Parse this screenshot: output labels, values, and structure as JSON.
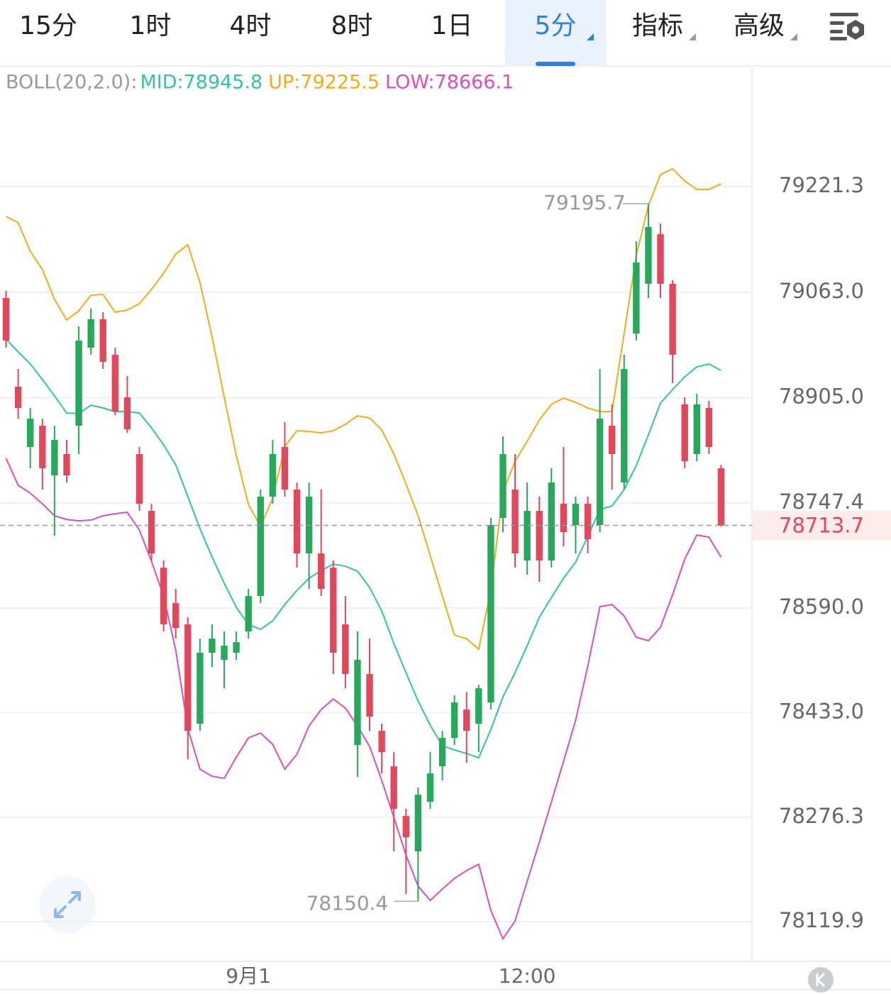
{
  "tabs": [
    "15分",
    "1时",
    "4时",
    "8时",
    "1日",
    "5分",
    "指标",
    "高级"
  ],
  "active_tab": 5,
  "chart_data": {
    "type": "candlestick",
    "indicator": "BOLL(20,2.0):",
    "categories": [
      null,
      null,
      null,
      null,
      null,
      null,
      null,
      null,
      null,
      null,
      null,
      null,
      null,
      null,
      null,
      null,
      null,
      null,
      null,
      null,
      "9月1",
      null,
      null,
      null,
      null,
      null,
      null,
      null,
      null,
      null,
      null,
      null,
      null,
      null,
      null,
      null,
      null,
      null,
      null,
      null,
      null,
      null,
      null,
      "12:00",
      null,
      null,
      null,
      null,
      null,
      null,
      null,
      null,
      null,
      null,
      null,
      null,
      null,
      null,
      null,
      null
    ],
    "open": [
      79054.4,
      78921.5,
      78831.1,
      78863.0,
      78788.6,
      78820.5,
      78863.0,
      78979.9,
      79022.5,
      78969.3,
      78905.5,
      78820.5,
      78735.4,
      78650.3,
      78597.2,
      78565.3,
      78416.4,
      78522.8,
      78512.1,
      78522.8,
      78554.7,
      78607.8,
      78756.7,
      78831.1,
      78767.3,
      78671.6,
      78671.6,
      78650.3,
      78565.3,
      78384.5,
      78490.9,
      78405.8,
      78352.6,
      78278.2,
      78225.1,
      78299.5,
      78352.6,
      78395.2,
      78437.7,
      78416.4,
      78448.3,
      78724.8,
      78767.3,
      78661.0,
      78735.4,
      78661.0,
      78746.0,
      78714.1,
      78746.0,
      78714.1,
      78863.0,
      78777.9,
      79001.2,
      79075.6,
      79150.0,
      79075.6,
      78894.9,
      78820.5,
      78889.6,
      78799.2
    ],
    "high": [
      79065.0,
      78948.0,
      78889.6,
      78873.6,
      78863.0,
      78841.7,
      79011.8,
      79038.4,
      79033.1,
      78979.9,
      78937.4,
      78831.1,
      78746.0,
      78661.0,
      78618.4,
      78575.9,
      78544.0,
      78565.3,
      78554.7,
      78554.7,
      78618.4,
      78767.3,
      78841.7,
      78868.3,
      78777.9,
      78777.9,
      78767.3,
      78661.0,
      78607.8,
      78554.7,
      78544.0,
      78416.4,
      78373.9,
      78288.9,
      78320.7,
      78373.9,
      78405.8,
      78459.0,
      78464.3,
      78474.9,
      78724.8,
      78847.0,
      78820.5,
      78777.9,
      78756.7,
      78799.2,
      78831.1,
      78756.7,
      78756.7,
      78948.0,
      78894.9,
      78969.3,
      79139.4,
      79195.7,
      79166.0,
      79080.9,
      78905.5,
      78910.8,
      78900.2,
      78804.5
    ],
    "low": [
      78979.9,
      78873.6,
      78799.2,
      78767.3,
      78698.2,
      78777.9,
      78820.5,
      78969.3,
      78948.0,
      78878.9,
      78852.3,
      78735.4,
      78661.0,
      78554.7,
      78544.0,
      78363.3,
      78405.8,
      78501.5,
      78469.6,
      78512.1,
      78544.0,
      78597.2,
      78746.0,
      78756.7,
      78650.3,
      78618.4,
      78607.8,
      78490.9,
      78469.6,
      78336.7,
      78405.8,
      78342.0,
      78225.1,
      78161.3,
      78150.4,
      78288.9,
      78331.4,
      78384.5,
      78358.0,
      78373.9,
      78437.7,
      78703.5,
      78650.3,
      78639.7,
      78629.1,
      78650.3,
      78682.2,
      78671.6,
      78671.6,
      78703.5,
      78767.3,
      78767.3,
      78990.6,
      79054.4,
      79054.4,
      78926.8,
      78799.2,
      78809.8,
      78820.5,
      78712.0
    ],
    "close": [
      78990.6,
      78889.6,
      78873.6,
      78799.2,
      78841.7,
      78788.6,
      78990.6,
      79022.5,
      78958.7,
      78884.2,
      78857.7,
      78746.0,
      78671.6,
      78565.3,
      78560.0,
      78405.8,
      78522.8,
      78544.0,
      78533.4,
      78538.7,
      78607.8,
      78756.7,
      78820.5,
      78767.3,
      78671.6,
      78756.7,
      78618.4,
      78522.8,
      78490.9,
      78512.1,
      78427.1,
      78373.9,
      78288.9,
      78246.3,
      78310.1,
      78342.0,
      78395.2,
      78448.3,
      78405.8,
      78469.6,
      78714.1,
      78820.5,
      78671.6,
      78735.4,
      78661.0,
      78777.9,
      78703.5,
      78746.0,
      78692.9,
      78873.6,
      78820.5,
      78948.0,
      79107.5,
      79160.7,
      79075.6,
      78969.3,
      78809.8,
      78894.9,
      78831.1,
      78713.7
    ],
    "up_color": "#26a95a",
    "down_color": "#e3475b",
    "series": [
      {
        "name": "MID:78945.8",
        "color": "#33c3a6",
        "values": [
          78992.7,
          78973.6,
          78955.5,
          78932.1,
          78907.6,
          78882.1,
          78881.1,
          78893.8,
          78889.6,
          78884.2,
          78884.2,
          78882.1,
          78859.8,
          78834.3,
          78804.5,
          78756.7,
          78708.8,
          78666.3,
          78627.0,
          78590.8,
          78565.3,
          78557.8,
          78570.6,
          78595.1,
          78616.3,
          78634.4,
          78646.1,
          78655.7,
          78652.5,
          78645.0,
          78620.6,
          78585.5,
          78536.6,
          78493.0,
          78450.5,
          78414.3,
          78383.5,
          78377.1,
          78371.8,
          78365.4,
          78407.9,
          78456.8,
          78493.0,
          78533.4,
          78575.9,
          78605.7,
          78634.4,
          78658.8,
          78697.1,
          78737.5,
          78742.8,
          78767.3,
          78803.4,
          78849.2,
          78897.0,
          78917.2,
          78936.3,
          78951.2,
          78955.5,
          78945.8
        ]
      },
      {
        "name": "UP:79225.5",
        "color": "#f0ad18",
        "values": [
          79176.6,
          79167.1,
          79124.5,
          79096.9,
          79052.2,
          79021.4,
          79035.2,
          79058.6,
          79059.7,
          79033.1,
          79036.3,
          79045.9,
          79067.1,
          79091.6,
          79120.3,
          79134.1,
          79077.7,
          78995.9,
          78905.5,
          78818.3,
          78745.0,
          78712.0,
          78754.5,
          78832.1,
          78855.5,
          78854.5,
          78852.3,
          78855.5,
          78865.1,
          78877.9,
          78874.7,
          78856.6,
          78820.5,
          78775.8,
          78727.9,
          78668.4,
          78607.8,
          78549.3,
          78544.0,
          78528.1,
          78616.3,
          78764.1,
          78809.8,
          78839.6,
          78871.5,
          78894.9,
          78904.4,
          78898.1,
          78889.6,
          78884.2,
          78884.2,
          79001.2,
          79118.1,
          79192.6,
          79239.4,
          79247.9,
          79229.8,
          79217.0,
          79217.0,
          79225.5
        ]
      },
      {
        "name": "LOW:78666.1",
        "color": "#d84fbf",
        "values": [
          78814.1,
          78773.7,
          78762.0,
          78746.0,
          78728.0,
          78722.6,
          78720.5,
          78721.6,
          78728.0,
          78731.1,
          78733.3,
          78706.7,
          78659.9,
          78607.8,
          78527.0,
          78409.0,
          78348.4,
          78337.8,
          78334.6,
          78366.5,
          78395.2,
          78402.6,
          78385.6,
          78348.4,
          78370.7,
          78413.2,
          78437.7,
          78453.6,
          78439.8,
          78413.2,
          78382.4,
          78331.4,
          78276.1,
          78219.7,
          78173.0,
          78151.7,
          78168.7,
          78184.7,
          78196.4,
          78205.9,
          78136.8,
          78094.3,
          78120.9,
          78180.4,
          78238.9,
          78299.5,
          78360.1,
          78421.8,
          78502.6,
          78591.9,
          78595.1,
          78578.0,
          78546.1,
          78540.8,
          78561.0,
          78609.9,
          78663.1,
          78699.2,
          78696.1,
          78666.1
        ]
      }
    ],
    "ylim": [
      78060.4,
      79399.9
    ],
    "yticks": [
      79221.3,
      {
        "value": 79063,
        "label": "79063.0"
      },
      {
        "value": 78905,
        "label": "78905.0"
      },
      78747.4,
      {
        "value": 78590,
        "label": "78590.0"
      },
      {
        "value": 78433,
        "label": "78433.0"
      },
      78276.3,
      78119.9
    ],
    "grid": true
  }
}
